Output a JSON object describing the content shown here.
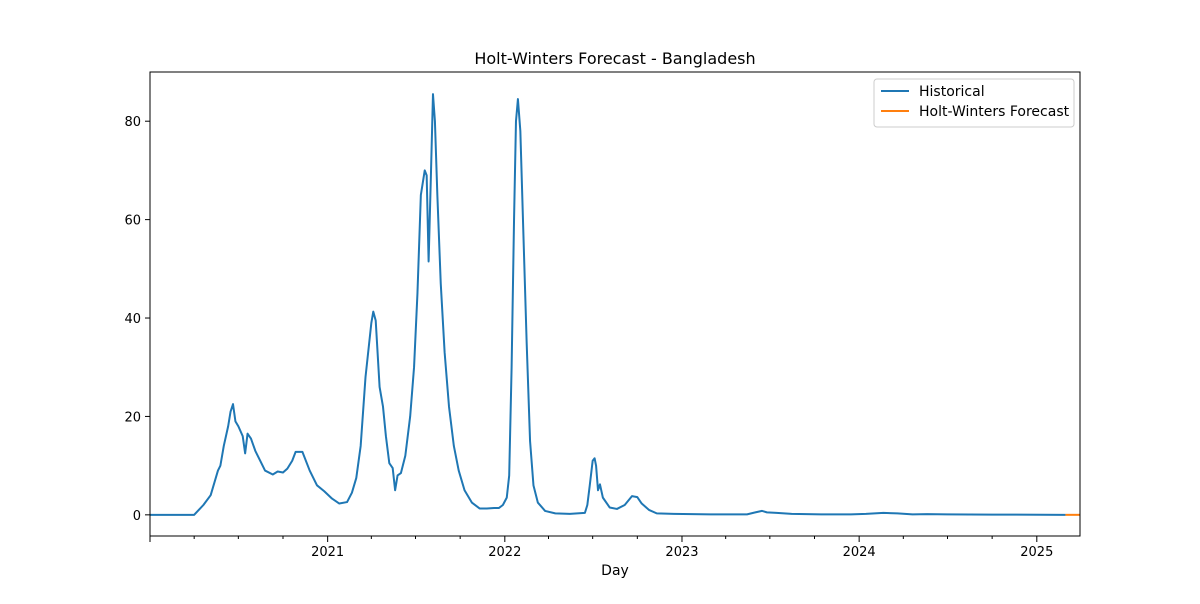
{
  "chart_data": {
    "type": "line",
    "title": "Holt-Winters Forecast - Bangladesh",
    "xlabel": "Day",
    "ylabel": "",
    "x_range": [
      "2020-01-01",
      "2025-03-31"
    ],
    "ylim": [
      -4.3,
      90
    ],
    "x_ticks": [
      {
        "date": "2021-01-01",
        "label": "2021"
      },
      {
        "date": "2022-01-01",
        "label": "2022"
      },
      {
        "date": "2023-01-01",
        "label": "2023"
      },
      {
        "date": "2024-01-01",
        "label": "2024"
      },
      {
        "date": "2025-01-01",
        "label": "2025"
      }
    ],
    "y_ticks": [
      0,
      20,
      40,
      60,
      80
    ],
    "grid": false,
    "legend_position": "top-right",
    "series": [
      {
        "name": "Historical",
        "color": "#1f77b4",
        "points": [
          [
            "2020-01-01",
            0
          ],
          [
            "2020-04-01",
            0
          ],
          [
            "2020-04-20",
            2
          ],
          [
            "2020-05-05",
            4
          ],
          [
            "2020-05-20",
            9
          ],
          [
            "2020-05-25",
            10
          ],
          [
            "2020-06-01",
            14
          ],
          [
            "2020-06-10",
            18
          ],
          [
            "2020-06-15",
            21
          ],
          [
            "2020-06-20",
            22.5
          ],
          [
            "2020-06-25",
            19
          ],
          [
            "2020-07-01",
            18
          ],
          [
            "2020-07-10",
            16
          ],
          [
            "2020-07-15",
            12.5
          ],
          [
            "2020-07-20",
            16.5
          ],
          [
            "2020-07-27",
            15.5
          ],
          [
            "2020-08-05",
            13
          ],
          [
            "2020-08-15",
            11
          ],
          [
            "2020-08-25",
            9
          ],
          [
            "2020-09-10",
            8.2
          ],
          [
            "2020-09-20",
            8.8
          ],
          [
            "2020-10-01",
            8.6
          ],
          [
            "2020-10-10",
            9.4
          ],
          [
            "2020-10-20",
            11
          ],
          [
            "2020-10-27",
            12.8
          ],
          [
            "2020-11-10",
            12.8
          ],
          [
            "2020-11-25",
            9
          ],
          [
            "2020-12-10",
            6
          ],
          [
            "2020-12-25",
            4.8
          ],
          [
            "2021-01-10",
            3.3
          ],
          [
            "2021-01-25",
            2.3
          ],
          [
            "2021-02-10",
            2.6
          ],
          [
            "2021-02-20",
            4.5
          ],
          [
            "2021-03-01",
            7.5
          ],
          [
            "2021-03-10",
            14
          ],
          [
            "2021-03-20",
            28
          ],
          [
            "2021-04-01",
            39
          ],
          [
            "2021-04-05",
            41.3
          ],
          [
            "2021-04-10",
            39.5
          ],
          [
            "2021-04-18",
            26
          ],
          [
            "2021-04-25",
            22
          ],
          [
            "2021-05-01",
            16
          ],
          [
            "2021-05-08",
            10.5
          ],
          [
            "2021-05-15",
            9.5
          ],
          [
            "2021-05-20",
            5
          ],
          [
            "2021-05-25",
            8
          ],
          [
            "2021-06-01",
            8.5
          ],
          [
            "2021-06-10",
            12
          ],
          [
            "2021-06-20",
            20
          ],
          [
            "2021-06-28",
            30
          ],
          [
            "2021-07-05",
            45
          ],
          [
            "2021-07-12",
            65
          ],
          [
            "2021-07-20",
            70
          ],
          [
            "2021-07-24",
            69
          ],
          [
            "2021-07-28",
            51.5
          ],
          [
            "2021-08-02",
            70
          ],
          [
            "2021-08-06",
            85.5
          ],
          [
            "2021-08-10",
            80
          ],
          [
            "2021-08-15",
            65
          ],
          [
            "2021-08-22",
            47
          ],
          [
            "2021-08-30",
            33
          ],
          [
            "2021-09-08",
            22
          ],
          [
            "2021-09-18",
            14
          ],
          [
            "2021-09-28",
            9
          ],
          [
            "2021-10-10",
            5
          ],
          [
            "2021-10-25",
            2.5
          ],
          [
            "2021-11-10",
            1.3
          ],
          [
            "2021-11-25",
            1.3
          ],
          [
            "2021-12-10",
            1.4
          ],
          [
            "2021-12-20",
            1.4
          ],
          [
            "2021-12-28",
            2
          ],
          [
            "2022-01-05",
            3.5
          ],
          [
            "2022-01-10",
            8
          ],
          [
            "2022-01-15",
            30
          ],
          [
            "2022-01-20",
            60
          ],
          [
            "2022-01-24",
            80
          ],
          [
            "2022-01-28",
            84.5
          ],
          [
            "2022-02-02",
            78
          ],
          [
            "2022-02-08",
            58
          ],
          [
            "2022-02-15",
            35
          ],
          [
            "2022-02-22",
            15
          ],
          [
            "2022-03-01",
            6
          ],
          [
            "2022-03-10",
            2.5
          ],
          [
            "2022-03-25",
            0.8
          ],
          [
            "2022-04-15",
            0.3
          ],
          [
            "2022-05-15",
            0.2
          ],
          [
            "2022-06-15",
            0.4
          ],
          [
            "2022-06-20",
            2
          ],
          [
            "2022-06-25",
            6
          ],
          [
            "2022-07-01",
            11
          ],
          [
            "2022-07-05",
            11.5
          ],
          [
            "2022-07-08",
            10
          ],
          [
            "2022-07-12",
            5
          ],
          [
            "2022-07-16",
            6.2
          ],
          [
            "2022-07-22",
            3.5
          ],
          [
            "2022-08-05",
            1.5
          ],
          [
            "2022-08-20",
            1.2
          ],
          [
            "2022-09-05",
            2
          ],
          [
            "2022-09-20",
            3.8
          ],
          [
            "2022-10-01",
            3.6
          ],
          [
            "2022-10-10",
            2.3
          ],
          [
            "2022-10-25",
            1
          ],
          [
            "2022-11-10",
            0.3
          ],
          [
            "2022-12-15",
            0.2
          ],
          [
            "2023-03-01",
            0.1
          ],
          [
            "2023-05-15",
            0.1
          ],
          [
            "2023-06-01",
            0.5
          ],
          [
            "2023-06-15",
            0.8
          ],
          [
            "2023-06-25",
            0.5
          ],
          [
            "2023-07-15",
            0.4
          ],
          [
            "2023-08-15",
            0.2
          ],
          [
            "2023-10-15",
            0.1
          ],
          [
            "2023-12-15",
            0.1
          ],
          [
            "2024-01-15",
            0.2
          ],
          [
            "2024-02-20",
            0.4
          ],
          [
            "2024-03-20",
            0.3
          ],
          [
            "2024-04-20",
            0.1
          ],
          [
            "2024-05-20",
            0.15
          ],
          [
            "2024-07-01",
            0.1
          ],
          [
            "2024-10-01",
            0.05
          ],
          [
            "2025-03-01",
            0
          ]
        ]
      },
      {
        "name": "Holt-Winters Forecast",
        "color": "#ff7f0e",
        "points": [
          [
            "2025-03-01",
            0
          ],
          [
            "2025-03-31",
            0
          ]
        ]
      }
    ]
  }
}
